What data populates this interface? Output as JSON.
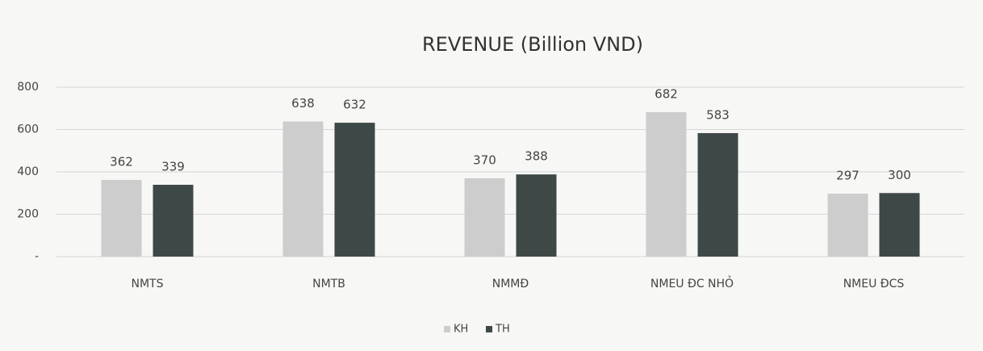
{
  "chart_data": {
    "type": "bar",
    "title": "REVENUE (Billion VND)",
    "categories": [
      "NMTS",
      "NMTB",
      "NMMĐ",
      "NMEU ĐC NHỎ",
      "NMEU ĐCS"
    ],
    "series": [
      {
        "name": "KH",
        "color": "#cdcdcd",
        "values": [
          362,
          638,
          370,
          682,
          297
        ]
      },
      {
        "name": "TH",
        "color": "#3e4847",
        "values": [
          339,
          632,
          388,
          583,
          300
        ]
      }
    ],
    "ylim": [
      0,
      800
    ],
    "yticks": [
      {
        "value": 0,
        "label": "-"
      },
      200,
      400,
      600,
      800
    ],
    "grid": true,
    "legend": "bottom"
  }
}
